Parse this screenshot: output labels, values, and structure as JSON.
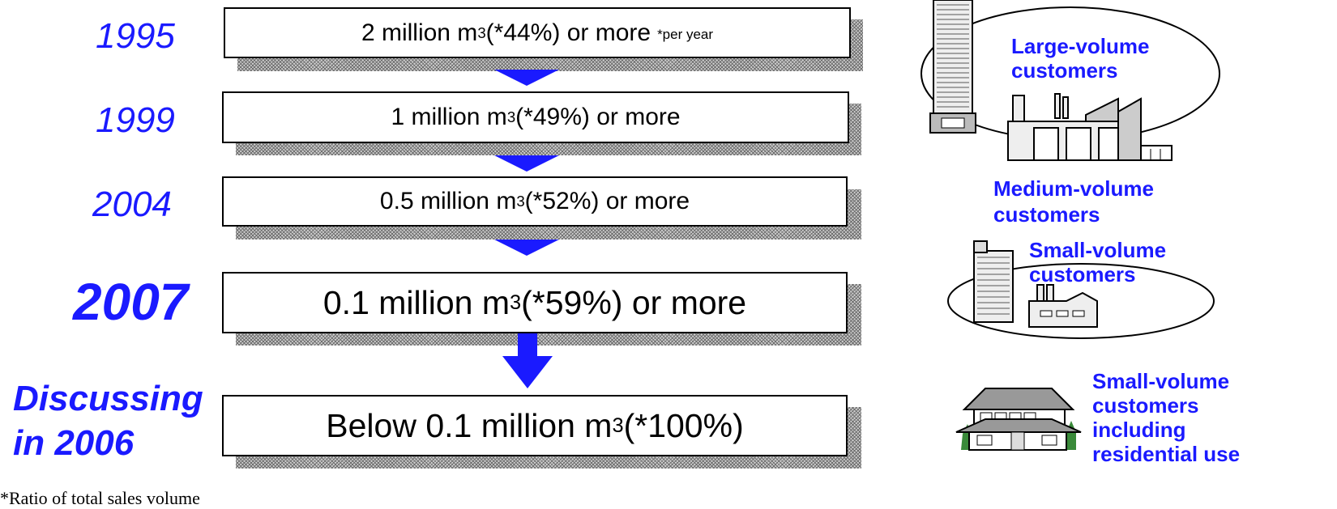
{
  "rows": [
    {
      "year": "1995",
      "value": "2 million m",
      "sup": "3",
      "rest": " (*44%) or more",
      "note": "*per year"
    },
    {
      "year": "1999",
      "value": "1 million m",
      "sup": "3",
      "rest": " (*49%) or more"
    },
    {
      "year": "2004",
      "value": "0.5 million m",
      "sup": "3",
      "rest": " (*52%) or more"
    },
    {
      "year": "2007",
      "value": "0.1 million m",
      "sup": "3",
      "rest": " (*59%) or more"
    },
    {
      "year_line1": "Discussing",
      "year_line2": "in 2006",
      "value": "Below 0.1 million m",
      "sup": "3",
      "rest": " (*100%)"
    }
  ],
  "footnote": "*Ratio of total sales volume",
  "customers": {
    "large_line1": "Large-volume",
    "large_line2": "customers",
    "medium_line1": "Medium-volume",
    "medium_line2": "customers",
    "small_line1": "Small-volume",
    "small_line2": "customers",
    "residential_line1": "Small-volume",
    "residential_line2": "customers",
    "residential_line3": "including",
    "residential_line4": "residential use"
  },
  "colors": {
    "accent": "#1a1aff",
    "arrow": "#1a1aff"
  }
}
